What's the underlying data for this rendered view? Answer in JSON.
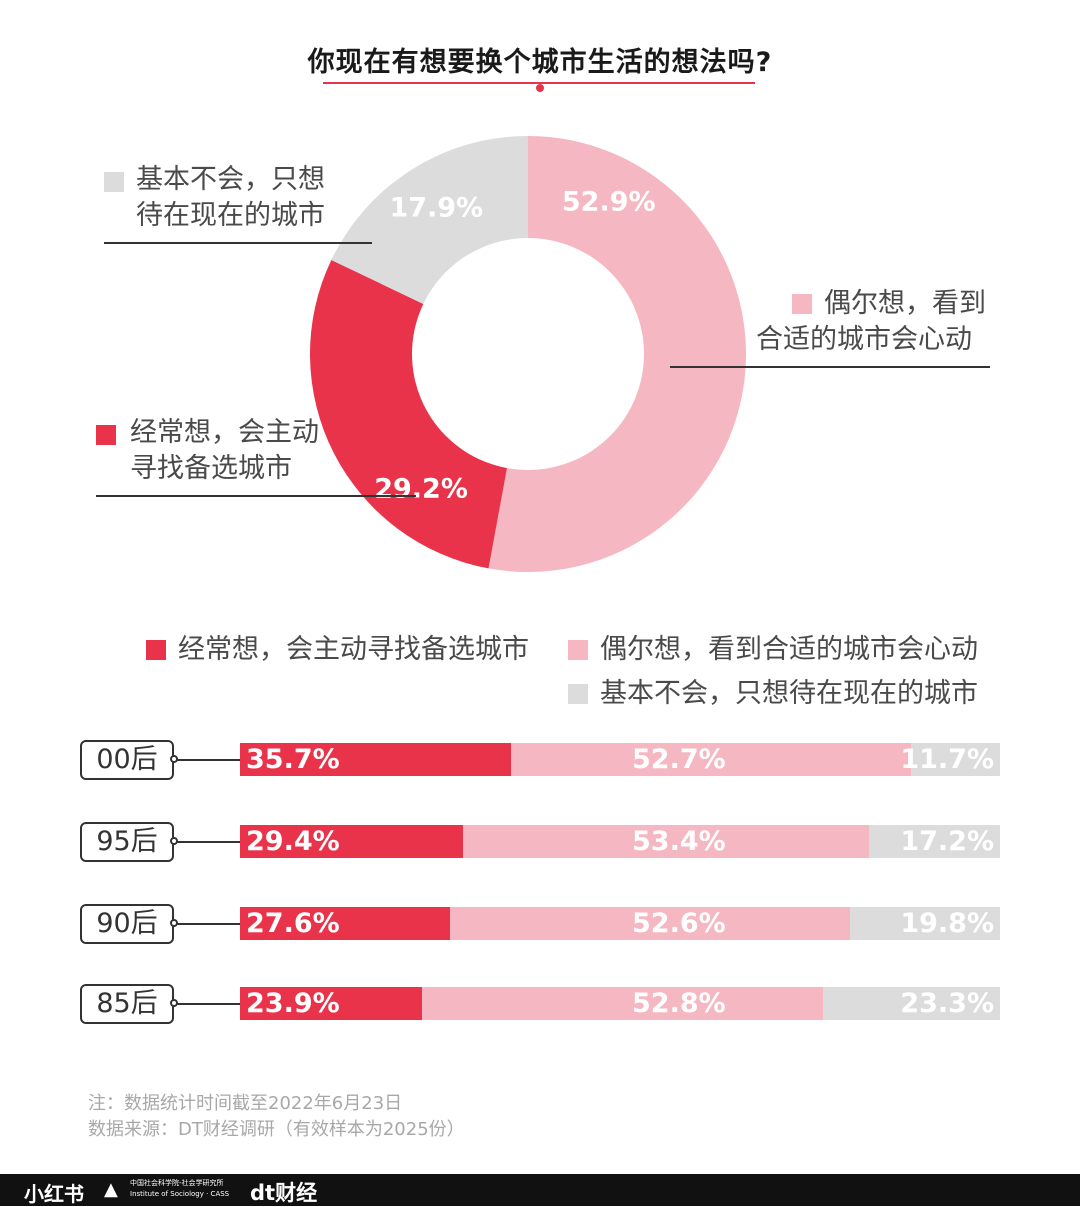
{
  "title": "你现在有想要换个城市生活的想法吗?",
  "colors": {
    "often": "#e8334a",
    "occasional": "#f5b7c2",
    "rarely": "#dcdcdc",
    "accent": "#e8334a"
  },
  "callouts": {
    "rarely": [
      "基本不会，只想",
      "待在现在的城市"
    ],
    "occasional": [
      "偶尔想，看到",
      "合适的城市会心动"
    ],
    "often": [
      "经常想，会主动",
      "寻找备选城市"
    ]
  },
  "legend": {
    "often": "经常想，会主动寻找备选城市",
    "occasional": "偶尔想，看到合适的城市会心动",
    "rarely": "基本不会，只想待在现在的城市"
  },
  "chart_data": [
    {
      "type": "pie",
      "donut": true,
      "slices": [
        {
          "name": "偶尔想，看到合适的城市会心动",
          "value": 52.9,
          "label": "52.9%",
          "color": "#f5b7c2"
        },
        {
          "name": "经常想，会主动寻找备选城市",
          "value": 29.2,
          "label": "29.2%",
          "color": "#e8334a"
        },
        {
          "name": "基本不会，只想待在现在的城市",
          "value": 17.9,
          "label": "17.9%",
          "color": "#dcdcdc"
        }
      ]
    },
    {
      "type": "bar",
      "stacked": true,
      "orientation": "horizontal",
      "categories": [
        "00后",
        "95后",
        "90后",
        "85后"
      ],
      "series": [
        {
          "name": "经常想，会主动寻找备选城市",
          "color": "#e8334a",
          "values": [
            35.7,
            29.4,
            27.6,
            23.9
          ],
          "labels": [
            "35.7%",
            "29.4%",
            "27.6%",
            "23.9%"
          ]
        },
        {
          "name": "偶尔想，看到合适的城市会心动",
          "color": "#f5b7c2",
          "values": [
            52.7,
            53.4,
            52.6,
            52.8
          ],
          "labels": [
            "52.7%",
            "53.4%",
            "52.6%",
            "52.8%"
          ]
        },
        {
          "name": "基本不会，只想待在现在的城市",
          "color": "#dcdcdc",
          "values": [
            11.7,
            17.2,
            19.8,
            23.3
          ],
          "labels": [
            "11.7%",
            "17.2%",
            "19.8%",
            "23.3%"
          ]
        }
      ]
    }
  ],
  "notes": [
    "注：数据统计时间截至2022年6月23日",
    "数据来源：DT财经调研（有效样本为2025份）"
  ],
  "footer": {
    "logo1": "小红书",
    "logo2_cn": "中国社会科学院-社会学研究所",
    "logo2_en": "Institute of Sociology · CASS",
    "logo3": "dt财经"
  }
}
